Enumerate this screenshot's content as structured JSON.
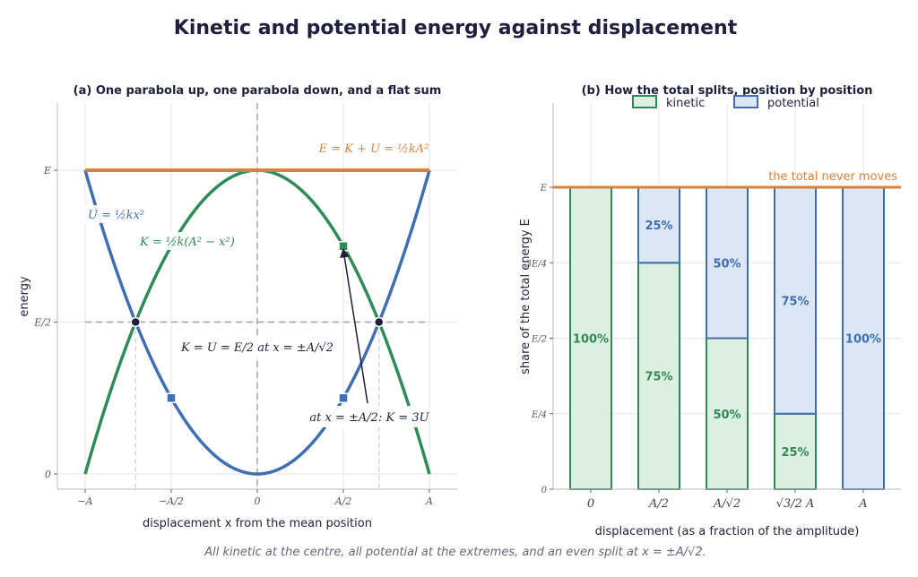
{
  "figure": {
    "title": "Kinetic and potential energy against displacement",
    "caption": "All kinetic at the centre, all potential at the extremes, and an even split at x = ±A/√2."
  },
  "colors": {
    "kinetic": "#2e8b57",
    "potential": "#3f6fb0",
    "total": "#d9803a",
    "dark": "#1f1f3d",
    "kinetic_fill": "#dcefe1",
    "potential_fill": "#dce7f6"
  },
  "chart_data": [
    {
      "type": "line",
      "title": "(a)  One parabola up, one parabola down, and a flat sum",
      "xlabel": "displacement x from the mean position",
      "ylabel": "energy",
      "xlim": [
        -1,
        1
      ],
      "ylim": [
        0,
        1
      ],
      "x_ticks": [
        {
          "value": -1,
          "label": "−A"
        },
        {
          "value": -0.5,
          "label": "−A/2"
        },
        {
          "value": 0,
          "label": "0"
        },
        {
          "value": 0.5,
          "label": "A/2"
        },
        {
          "value": 1,
          "label": "A"
        }
      ],
      "y_ticks": [
        {
          "value": 0,
          "label": "0"
        },
        {
          "value": 0.5,
          "label": "E/2"
        },
        {
          "value": 1,
          "label": "E"
        }
      ],
      "series": [
        {
          "name": "U = ½kx²",
          "formula": "x^2"
        },
        {
          "name": "K = ½k(A² − x²)",
          "formula": "1 - x^2"
        },
        {
          "name": "E = K + U = ½kA²",
          "formula": "1"
        }
      ],
      "equal_points": [
        {
          "x": -0.7071,
          "y": 0.5
        },
        {
          "x": 0.7071,
          "y": 0.5
        }
      ],
      "quarter_markers": [
        {
          "series": "potential",
          "x": -0.5,
          "y": 0.25
        },
        {
          "series": "potential",
          "x": 0.5,
          "y": 0.25
        },
        {
          "series": "kinetic",
          "x": 0.5,
          "y": 0.75
        }
      ],
      "annotations": {
        "equal_split": "K = U = E/2  at  x = ±A/√2",
        "quarter": "at x = ±A/2:  K = 3U"
      }
    },
    {
      "type": "bar",
      "title": "(b)  How the total splits, position by position",
      "xlabel": "displacement (as a fraction of the amplitude)",
      "ylabel": "share of the total energy E",
      "ylim": [
        0,
        1
      ],
      "y_ticks": [
        {
          "value": 0,
          "label": "0"
        },
        {
          "value": 0.25,
          "label": "E/4"
        },
        {
          "value": 0.5,
          "label": "E/2"
        },
        {
          "value": 0.75,
          "label": "3E/4"
        },
        {
          "value": 1,
          "label": "E"
        }
      ],
      "categories": [
        "0",
        "A/2",
        "A/√2",
        "√3/2 A",
        "A"
      ],
      "series": [
        {
          "name": "kinetic",
          "values": [
            1.0,
            0.75,
            0.5,
            0.25,
            0.0
          ]
        },
        {
          "name": "potential",
          "values": [
            0.0,
            0.25,
            0.5,
            0.75,
            1.0
          ]
        }
      ],
      "value_labels": {
        "kinetic": [
          "100%",
          "75%",
          "50%",
          "25%",
          ""
        ],
        "potential": [
          "",
          "25%",
          "50%",
          "75%",
          "100%"
        ]
      },
      "legend": "top",
      "total_line_label": "the total never moves"
    }
  ]
}
